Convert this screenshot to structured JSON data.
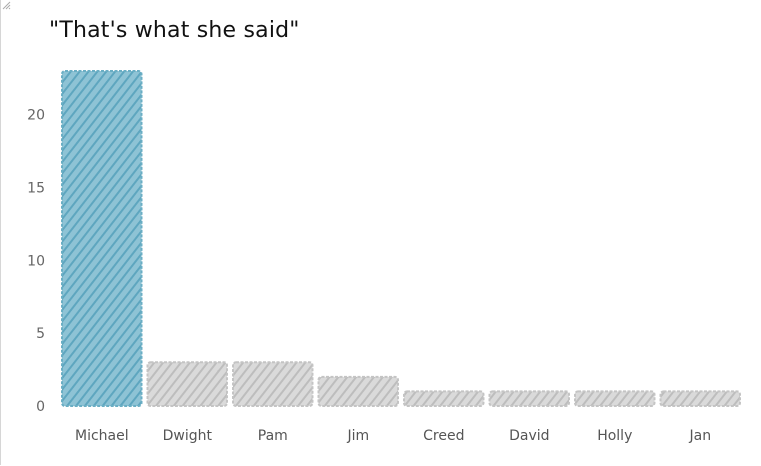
{
  "chart_data": {
    "type": "bar",
    "title": "\"That's what she said\"",
    "xlabel": "",
    "ylabel": "",
    "categories": [
      "Michael",
      "Dwight",
      "Pam",
      "Jim",
      "Creed",
      "David",
      "Holly",
      "Jan"
    ],
    "values": [
      23,
      3,
      3,
      2,
      1,
      1,
      1,
      1
    ],
    "yticks": [
      0,
      5,
      10,
      15,
      20
    ],
    "ylim": [
      0,
      23
    ],
    "grid": false,
    "legend": "none",
    "colors": {
      "highlight": "#6aaec4",
      "default": "#c4c4c4"
    }
  }
}
